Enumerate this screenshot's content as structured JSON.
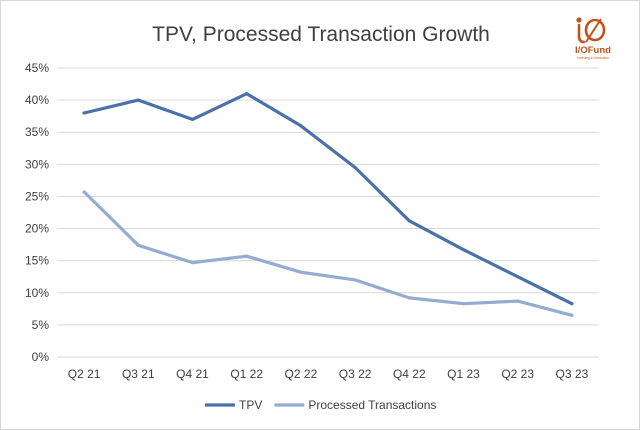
{
  "chart_data": {
    "type": "line",
    "title": "TPV, Processed Transaction Growth",
    "xlabel": "",
    "ylabel": "",
    "categories": [
      "Q2 21",
      "Q3 21",
      "Q4 21",
      "Q1 22",
      "Q2 22",
      "Q3 22",
      "Q4 22",
      "Q1 23",
      "Q2 23",
      "Q3 23"
    ],
    "ylim": [
      0,
      45
    ],
    "yticks": [
      0,
      5,
      10,
      15,
      20,
      25,
      30,
      35,
      40,
      45
    ],
    "ytick_labels": [
      "0%",
      "5%",
      "10%",
      "15%",
      "20%",
      "25%",
      "30%",
      "35%",
      "40%",
      "45%"
    ],
    "grid": true,
    "legend_position": "bottom",
    "series": [
      {
        "name": "TPV",
        "color": "#4a72a8",
        "values": [
          38,
          40,
          37,
          41,
          36,
          29.5,
          21.2,
          16.7,
          12.5,
          8.3
        ]
      },
      {
        "name": "Processed Transactions",
        "color": "#93acd0",
        "values": [
          25.7,
          17.4,
          14.7,
          15.7,
          13.2,
          12.0,
          9.2,
          8.3,
          8.7,
          6.5
        ]
      }
    ]
  },
  "logo": {
    "text": "I/OFund",
    "tagline": "Investing in Innovation",
    "color": "#c0541f"
  }
}
